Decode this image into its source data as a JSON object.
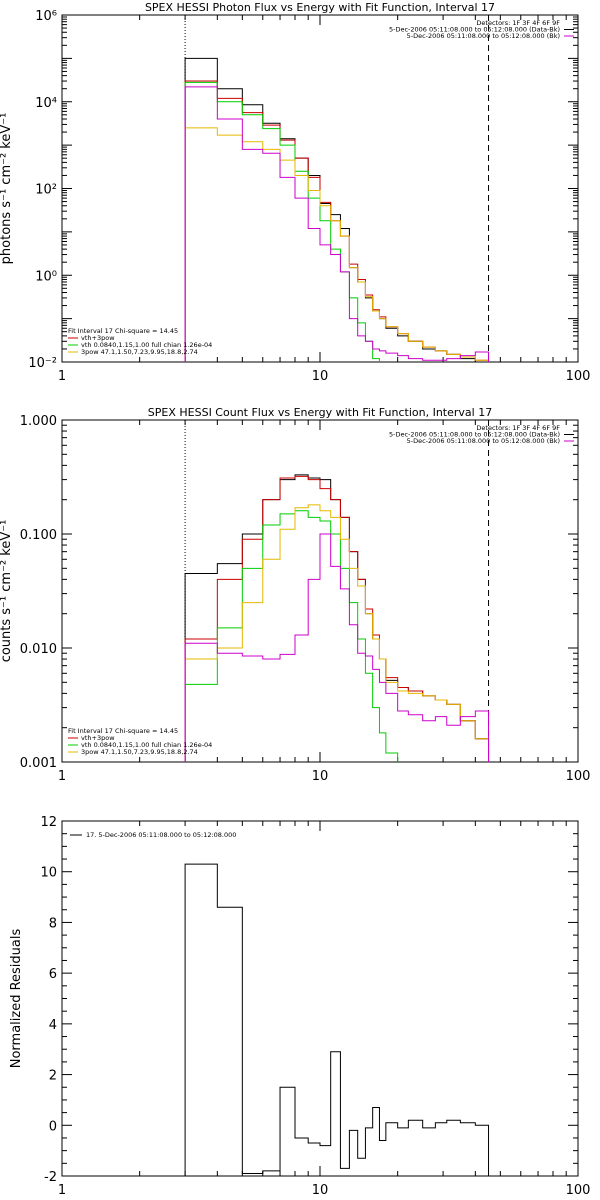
{
  "chart_data": [
    {
      "type": "line",
      "title": "SPEX HESSI Photon Flux vs Energy with Fit Function, Interval 17",
      "ylabel": "photons s⁻¹ cm⁻² keV⁻¹",
      "xlabel": "",
      "xscale": "log",
      "yscale": "log",
      "xlim": [
        1,
        100
      ],
      "ylim": [
        0.01,
        1000000
      ],
      "x_ticks": [
        {
          "label": "1",
          "value": 1
        },
        {
          "label": "10",
          "value": 10
        },
        {
          "label": "100",
          "value": 100
        }
      ],
      "y_ticks": [
        {
          "label": "10⁻²",
          "value": 0.01
        },
        {
          "label": "10⁰",
          "value": 1
        },
        {
          "label": "10²",
          "value": 100
        },
        {
          "label": "10⁴",
          "value": 10000
        },
        {
          "label": "10⁶",
          "value": 1000000
        }
      ],
      "grid": false,
      "fit_range_keV": [
        3,
        45
      ],
      "legend_top_right": [
        {
          "text": "Detectors: 1F 3F 4F 6F 9F",
          "color": "#000000"
        },
        {
          "text": "5-Dec-2006 05:11:08.000 to 05:12:08.000 (Data-Bk)",
          "color": "#000000"
        },
        {
          "text": "5-Dec-2006 05:11:08.000 to 05:12:08.000 (Bk)",
          "color": "#cc00cc"
        }
      ],
      "legend_bottom_left": [
        {
          "text": "Fit Interval 17    Chi-square = 14.45",
          "color": "#000000"
        },
        {
          "text": "vth+3pow",
          "color": "#cc0000"
        },
        {
          "text": "vth 0.0840,1.15,1.00  full chian 1.26e-04",
          "color": "#00cc00"
        },
        {
          "text": "3pow 47.1,1.50,7.23,9.95,18.8,2.74",
          "color": "#e6b800"
        }
      ],
      "edges": [
        3,
        4,
        5,
        6,
        7,
        8,
        9,
        10,
        11,
        12,
        13,
        14,
        15,
        16,
        17,
        18,
        20,
        22,
        25,
        28,
        31,
        35,
        40,
        45
      ],
      "series": [
        {
          "name": "Data-Bk",
          "color": "#000000",
          "values": [
            100000,
            20000,
            8500,
            3200,
            1400,
            500,
            200,
            45,
            25,
            12,
            1.5,
            0.7,
            0.3,
            0.15,
            0.1,
            0.06,
            0.04,
            0.03,
            0.02,
            0.018,
            0.015,
            0.012,
            0.01
          ]
        },
        {
          "name": "vth+3pow",
          "color": "#cc0000",
          "values": [
            30000,
            12000,
            5600,
            2900,
            1300,
            500,
            180,
            48,
            18,
            8,
            1.8,
            0.8,
            0.35,
            0.16,
            0.11,
            0.065,
            0.045,
            0.03,
            0.022,
            0.018,
            0.015,
            0.013,
            0.011
          ]
        },
        {
          "name": "vth",
          "color": "#00cc00",
          "values": [
            28000,
            10000,
            5000,
            2400,
            1000,
            250,
            60,
            18,
            4,
            1.2,
            0.3,
            0.08,
            0.03,
            0.012
          ]
        },
        {
          "name": "3pow",
          "color": "#e6b800",
          "values": [
            2500,
            1700,
            1200,
            800,
            450,
            200,
            90,
            40,
            18,
            8,
            1.5,
            0.7,
            0.32,
            0.15,
            0.1,
            0.065,
            0.045,
            0.03,
            0.022,
            0.018,
            0.015,
            0.013,
            0.011
          ]
        },
        {
          "name": "Bk",
          "color": "#cc00cc",
          "values": [
            22000,
            4000,
            800,
            650,
            180,
            60,
            12,
            5,
            3,
            1.2,
            0.1,
            0.04,
            0.03,
            0.02,
            0.018,
            0.016,
            0.014,
            0.012,
            0.011,
            0.011,
            0.012,
            0.014,
            0.017
          ]
        }
      ]
    },
    {
      "type": "line",
      "title": "SPEX HESSI Count Flux vs Energy with Fit Function, Interval 17",
      "ylabel": "counts s⁻¹ cm⁻² keV⁻¹",
      "xlabel": "",
      "xscale": "log",
      "yscale": "log",
      "xlim": [
        1,
        100
      ],
      "ylim": [
        0.001,
        1
      ],
      "x_ticks": [
        {
          "label": "1",
          "value": 1
        },
        {
          "label": "10",
          "value": 10
        },
        {
          "label": "100",
          "value": 100
        }
      ],
      "y_ticks": [
        {
          "label": "0.001",
          "value": 0.001
        },
        {
          "label": "0.010",
          "value": 0.01
        },
        {
          "label": "0.100",
          "value": 0.1
        },
        {
          "label": "1.000",
          "value": 1
        }
      ],
      "grid": false,
      "fit_range_keV": [
        3,
        45
      ],
      "legend_top_right": [
        {
          "text": "Detectors: 1F 3F 4F 6F 9F",
          "color": "#000000"
        },
        {
          "text": "5-Dec-2006 05:11:08.000 to 05:12:08.000 (Data-Bk)",
          "color": "#000000"
        },
        {
          "text": "5-Dec-2006 05:11:08.000 to 05:12:08.000 (Bk)",
          "color": "#cc00cc"
        }
      ],
      "legend_bottom_left": [
        {
          "text": "Fit Interval 17    Chi-square = 14.45",
          "color": "#000000"
        },
        {
          "text": "vth+3pow",
          "color": "#cc0000"
        },
        {
          "text": "vth 0.0840,1.15,1.00  full chian 1.26e-04",
          "color": "#00cc00"
        },
        {
          "text": "3pow 47.1,1.50,7.23,9.95,18.8,2.74",
          "color": "#e6b800"
        }
      ],
      "edges": [
        3,
        4,
        5,
        6,
        7,
        8,
        9,
        10,
        11,
        12,
        13,
        14,
        15,
        16,
        17,
        18,
        20,
        22,
        25,
        28,
        31,
        35,
        40,
        45
      ],
      "series": [
        {
          "name": "Data-Bk",
          "color": "#000000",
          "values": [
            0.045,
            0.055,
            0.1,
            0.2,
            0.3,
            0.33,
            0.31,
            0.3,
            0.2,
            0.14,
            0.07,
            0.04,
            0.02,
            0.012,
            0.008,
            0.0052,
            0.0045,
            0.0042,
            0.0038,
            0.0035,
            0.0032,
            0.0023,
            0.0016
          ]
        },
        {
          "name": "vth+3pow",
          "color": "#cc0000",
          "values": [
            0.012,
            0.04,
            0.09,
            0.2,
            0.31,
            0.32,
            0.3,
            0.25,
            0.2,
            0.14,
            0.07,
            0.04,
            0.022,
            0.013,
            0.008,
            0.0055,
            0.0045,
            0.0042,
            0.0038,
            0.0035,
            0.0032,
            0.0023,
            0.0016
          ]
        },
        {
          "name": "vth",
          "color": "#00cc00",
          "values": [
            0.0048,
            0.015,
            0.05,
            0.12,
            0.15,
            0.16,
            0.14,
            0.13,
            0.1,
            0.05,
            0.025,
            0.012,
            0.006,
            0.003,
            0.0018,
            0.0012
          ]
        },
        {
          "name": "3pow",
          "color": "#e6b800",
          "values": [
            0.008,
            0.01,
            0.025,
            0.06,
            0.11,
            0.17,
            0.18,
            0.16,
            0.14,
            0.09,
            0.05,
            0.035,
            0.02,
            0.012,
            0.008,
            0.005,
            0.0042,
            0.004,
            0.0038,
            0.0035,
            0.0032,
            0.0023,
            0.0016
          ]
        },
        {
          "name": "Bk",
          "color": "#cc00cc",
          "values": [
            0.011,
            0.009,
            0.0085,
            0.008,
            0.0088,
            0.013,
            0.04,
            0.1,
            0.052,
            0.033,
            0.016,
            0.009,
            0.0085,
            0.0065,
            0.005,
            0.004,
            0.0028,
            0.0026,
            0.0023,
            0.0025,
            0.0021,
            0.0025,
            0.0028
          ]
        }
      ]
    },
    {
      "type": "line",
      "title": "",
      "ylabel": "Normalized Residuals",
      "xlabel": "",
      "xscale": "log",
      "yscale": "linear",
      "xlim": [
        1,
        100
      ],
      "ylim": [
        -2,
        12
      ],
      "x_ticks": [
        {
          "label": "1",
          "value": 1
        },
        {
          "label": "10",
          "value": 10
        },
        {
          "label": "100",
          "value": 100
        }
      ],
      "y_ticks": [
        {
          "label": "-2",
          "value": -2
        },
        {
          "label": "0",
          "value": 0
        },
        {
          "label": "2",
          "value": 2
        },
        {
          "label": "4",
          "value": 4
        },
        {
          "label": "6",
          "value": 6
        },
        {
          "label": "8",
          "value": 8
        },
        {
          "label": "10",
          "value": 10
        },
        {
          "label": "12",
          "value": 12
        }
      ],
      "grid": false,
      "legend_top_left": [
        {
          "text": "17.  5-Dec-2006 05:11:08.000 to 05:12:08.000",
          "color": "#000000"
        }
      ],
      "edges": [
        3,
        4,
        5,
        6,
        7,
        8,
        9,
        10,
        11,
        12,
        13,
        14,
        15,
        16,
        17,
        18,
        20,
        22,
        25,
        28,
        31,
        35,
        40,
        45
      ],
      "series": [
        {
          "name": "17.  5-Dec-2006 05:11:08.000 to 05:12:08.000",
          "color": "#000000",
          "values": [
            10.3,
            8.6,
            -1.9,
            -1.8,
            1.5,
            -0.5,
            -0.7,
            -0.8,
            2.9,
            -1.7,
            -0.2,
            -1.3,
            -0.1,
            0.7,
            -0.6,
            0.1,
            -0.1,
            0.2,
            -0.1,
            0.1,
            0.2,
            0.1,
            0.0
          ]
        }
      ]
    }
  ]
}
